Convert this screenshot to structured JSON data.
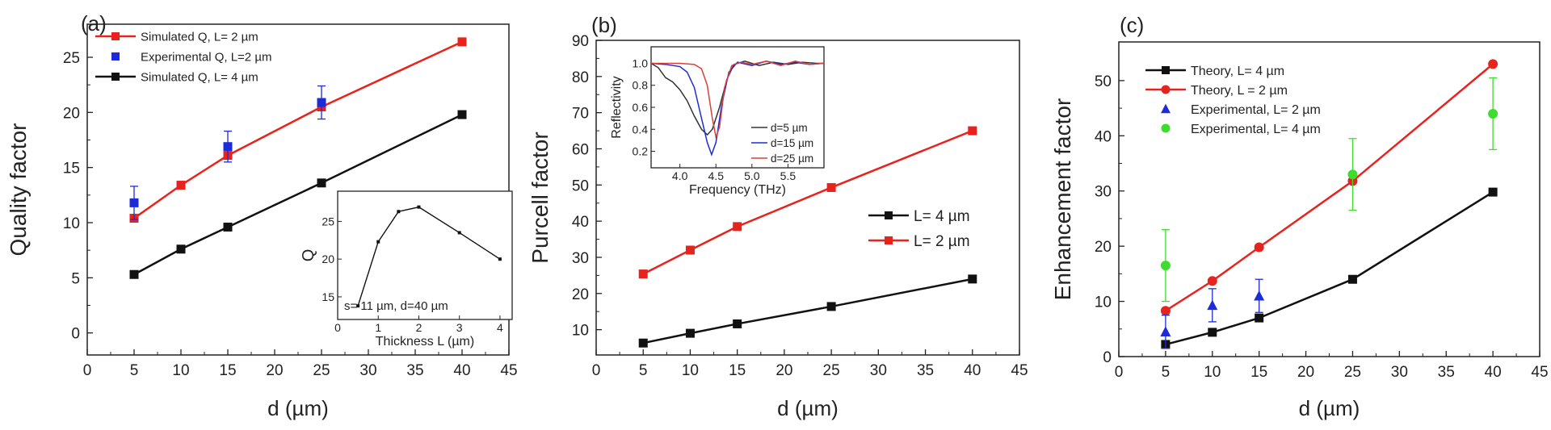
{
  "chart_data": [
    {
      "panel_label": "(a)",
      "type": "line",
      "xlabel": "d (µm)",
      "ylabel": "Quality factor",
      "xlim": [
        0,
        45
      ],
      "ylim": [
        -2,
        28
      ],
      "xticks": [
        0,
        5,
        10,
        15,
        20,
        25,
        30,
        35,
        40,
        45
      ],
      "yticks": [
        0,
        5,
        10,
        15,
        20,
        25
      ],
      "legend_position": "top-left",
      "series": [
        {
          "name": "Simulated Q, L= 2 µm",
          "color": "#e8231e",
          "marker": "square",
          "line": true,
          "x": [
            5,
            10,
            15,
            25,
            40
          ],
          "y": [
            10.4,
            13.4,
            16.1,
            20.5,
            26.4
          ]
        },
        {
          "name": "Experimental Q, L=2 µm",
          "color": "#1d2bd8",
          "marker": "square",
          "line": false,
          "x": [
            5,
            15,
            25
          ],
          "y": [
            11.8,
            16.9,
            20.9
          ],
          "err": [
            1.5,
            1.4,
            1.5
          ]
        },
        {
          "name": "Simulated Q, L= 4 µm",
          "color": "#111111",
          "marker": "square",
          "line": true,
          "x": [
            5,
            10,
            15,
            25,
            40
          ],
          "y": [
            5.3,
            7.6,
            9.6,
            13.6,
            19.8
          ]
        }
      ],
      "inset": {
        "xlabel": "Thickness L (µm)",
        "ylabel": "Q",
        "xlim": [
          0,
          4.3
        ],
        "ylim": [
          12,
          29
        ],
        "xticks": [
          0,
          1,
          2,
          3,
          4
        ],
        "yticks": [
          15,
          20,
          25
        ],
        "annotation": "s= 11 µm, d=40 µm",
        "x": [
          0.5,
          1.0,
          1.5,
          2.0,
          3.0,
          4.0
        ],
        "y": [
          13.8,
          22.3,
          26.3,
          26.9,
          23.5,
          20.0
        ]
      }
    },
    {
      "panel_label": "(b)",
      "type": "line",
      "xlabel": "d (µm)",
      "ylabel": "Purcell factor",
      "xlim": [
        0,
        45
      ],
      "ylim": [
        3,
        90
      ],
      "xticks": [
        0,
        5,
        10,
        15,
        20,
        25,
        30,
        35,
        40,
        45
      ],
      "yticks": [
        10,
        20,
        30,
        40,
        50,
        60,
        70,
        80,
        90
      ],
      "legend_position": "center-right",
      "series": [
        {
          "name": "L= 4 µm",
          "color": "#111111",
          "marker": "square",
          "line": true,
          "x": [
            5,
            10,
            15,
            25,
            40
          ],
          "y": [
            6.3,
            9.0,
            11.6,
            16.4,
            24.0
          ]
        },
        {
          "name": "L= 2 µm",
          "color": "#e8231e",
          "marker": "square",
          "line": true,
          "x": [
            5,
            10,
            15,
            25,
            40
          ],
          "y": [
            25.4,
            32.0,
            38.5,
            49.3,
            65.0
          ]
        }
      ],
      "inset": {
        "xlabel": "Frequency (THz)",
        "ylabel": "Reflectivity",
        "xlim": [
          3.6,
          6.0
        ],
        "ylim": [
          0.05,
          1.15
        ],
        "xticks": [
          4.0,
          4.5,
          5.0,
          5.5
        ],
        "xtick_labels": [
          "4.0",
          "4.5",
          "5.0",
          "5.5"
        ],
        "yticks": [
          0.2,
          0.4,
          0.6,
          0.8,
          1.0
        ],
        "ytick_labels": [
          "0.2",
          "0.4",
          "0.6",
          "0.8",
          "1.0"
        ],
        "series": [
          {
            "name": "d=5 µm",
            "color": "#333333",
            "x": [
              3.6,
              3.7,
              3.8,
              3.9,
              4.0,
              4.1,
              4.2,
              4.3,
              4.38,
              4.45,
              4.55,
              4.65,
              4.75,
              4.9,
              5.1,
              5.3,
              5.5,
              5.7,
              5.9,
              6.0
            ],
            "y": [
              1.0,
              0.96,
              0.87,
              0.83,
              0.76,
              0.66,
              0.52,
              0.4,
              0.35,
              0.4,
              0.6,
              0.85,
              0.99,
              1.02,
              0.98,
              1.01,
              0.99,
              1.01,
              1.0,
              1.0
            ]
          },
          {
            "name": "d=15 µm",
            "color": "#1d2bd8",
            "x": [
              3.6,
              3.8,
              4.0,
              4.1,
              4.2,
              4.3,
              4.38,
              4.44,
              4.5,
              4.58,
              4.68,
              4.8,
              5.0,
              5.2,
              5.4,
              5.6,
              5.8,
              6.0
            ],
            "y": [
              1.0,
              0.99,
              0.97,
              0.92,
              0.78,
              0.5,
              0.28,
              0.17,
              0.28,
              0.62,
              0.92,
              1.01,
              0.98,
              1.02,
              0.99,
              1.01,
              0.99,
              1.0
            ],
            "label": "d=15 µm"
          },
          {
            "name": "d=25 µm",
            "color": "#d9403a",
            "x": [
              3.6,
              3.8,
              4.0,
              4.2,
              4.3,
              4.38,
              4.45,
              4.5,
              4.55,
              4.62,
              4.72,
              4.85,
              5.0,
              5.2,
              5.4,
              5.6,
              5.8,
              6.0
            ],
            "y": [
              1.0,
              1.0,
              1.0,
              0.99,
              0.95,
              0.8,
              0.5,
              0.33,
              0.42,
              0.78,
              0.98,
              1.01,
              0.99,
              1.02,
              0.98,
              1.02,
              0.99,
              1.0
            ]
          }
        ]
      }
    },
    {
      "panel_label": "(c)",
      "type": "line",
      "xlabel": "d (µm)",
      "ylabel": "Enhancement factor",
      "xlim": [
        0,
        45
      ],
      "ylim": [
        0,
        57
      ],
      "xticks": [
        0,
        5,
        10,
        15,
        20,
        25,
        30,
        35,
        40,
        45
      ],
      "yticks": [
        0,
        10,
        20,
        30,
        40,
        50
      ],
      "legend_position": "top-left",
      "series": [
        {
          "name": "Theory, L= 4 µm",
          "color": "#111111",
          "marker": "square",
          "line": true,
          "x": [
            5,
            10,
            15,
            25,
            40
          ],
          "y": [
            2.2,
            4.4,
            7.0,
            14.0,
            29.8
          ]
        },
        {
          "name": "Theory, L = 2 µm",
          "color": "#e8231e",
          "marker": "circle",
          "line": true,
          "x": [
            5,
            10,
            15,
            25,
            40
          ],
          "y": [
            8.3,
            13.7,
            19.8,
            31.8,
            53.0
          ]
        },
        {
          "name": "Experimental, L= 2 µm",
          "color": "#1d2bd8",
          "marker": "triangle",
          "line": false,
          "x": [
            5,
            10,
            15
          ],
          "y": [
            4.5,
            9.3,
            11.0
          ],
          "err": [
            3.0,
            3.0,
            3.0
          ]
        },
        {
          "name": "Experimental, L= 4 µm",
          "color": "#3ddc2e",
          "marker": "circle",
          "line": false,
          "x": [
            5,
            25,
            40
          ],
          "y": [
            16.5,
            33.0,
            44.0
          ],
          "err": [
            6.5,
            6.5,
            6.5
          ]
        }
      ]
    }
  ]
}
